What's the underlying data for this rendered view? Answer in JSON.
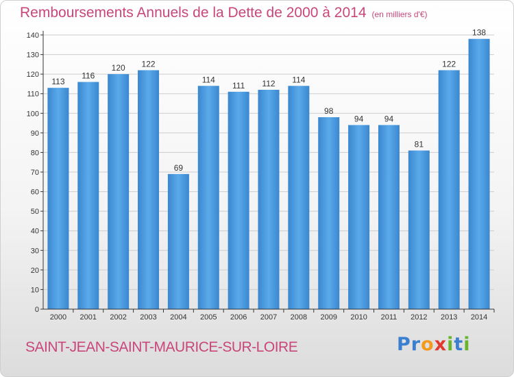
{
  "chart_data": {
    "type": "bar",
    "title": "Remboursements Annuels de la Dette de 2000 à 2014",
    "subtitle": "(en milliers d'€)",
    "categories": [
      "2000",
      "2001",
      "2002",
      "2003",
      "2004",
      "2005",
      "2006",
      "2007",
      "2008",
      "2009",
      "2010",
      "2011",
      "2012",
      "2013",
      "2014"
    ],
    "values": [
      113,
      116,
      120,
      122,
      69,
      114,
      111,
      112,
      114,
      98,
      94,
      94,
      81,
      122,
      138
    ],
    "ylim": [
      0,
      140
    ],
    "yticks": [
      0,
      10,
      20,
      30,
      40,
      50,
      60,
      70,
      80,
      90,
      100,
      110,
      120,
      130,
      140
    ],
    "grid": true,
    "xlabel": "",
    "ylabel": "",
    "bar_color": "#4a9be0"
  },
  "footer": {
    "commune": "SAINT-JEAN-SAINT-MAURICE-SUR-LOIRE",
    "brand_letters": [
      {
        "ch": "P",
        "color": "#3a7fd0"
      },
      {
        "ch": "r",
        "color": "#3a7fd0"
      },
      {
        "ch": "o",
        "color": "#f39a1e"
      },
      {
        "ch": "x",
        "color": "#e2382e"
      },
      {
        "ch": "i",
        "color": "#67b52a"
      },
      {
        "ch": "t",
        "color": "#3a7fd0"
      },
      {
        "ch": "i",
        "color": "#67b52a"
      }
    ]
  },
  "colors": {
    "title": "#c8467a",
    "axis": "#333333",
    "grid": "#cccccc"
  }
}
